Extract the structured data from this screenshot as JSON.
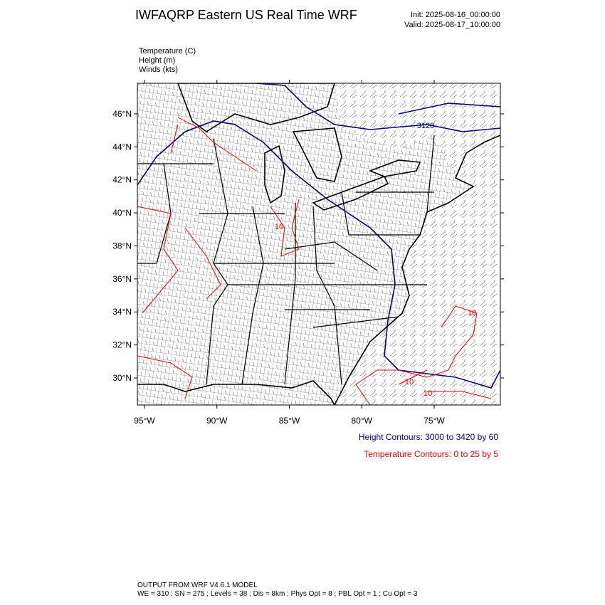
{
  "header": {
    "title": "IWFAQRP Eastern US Real Time WRF",
    "init": "Init: 2025-08-16_00:00:00",
    "valid": "Valid: 2025-08-17_10:00:00"
  },
  "fields": [
    "Temperature   (C)",
    "Height   (m)",
    "Winds   (kts)"
  ],
  "map": {
    "lat_ticks": [
      {
        "value": 46,
        "label": "46°N"
      },
      {
        "value": 44,
        "label": "44°N"
      },
      {
        "value": 42,
        "label": "42°N"
      },
      {
        "value": 40,
        "label": "40°N"
      },
      {
        "value": 38,
        "label": "38°N"
      },
      {
        "value": 36,
        "label": "36°N"
      },
      {
        "value": 34,
        "label": "34°N"
      },
      {
        "value": 32,
        "label": "32°N"
      },
      {
        "value": 30,
        "label": "30°N"
      }
    ],
    "lon_ticks": [
      {
        "value": -95,
        "label": "95°W"
      },
      {
        "value": -90,
        "label": "90°W"
      },
      {
        "value": -85,
        "label": "85°W"
      },
      {
        "value": -80,
        "label": "80°W"
      },
      {
        "value": -75,
        "label": "75°W"
      }
    ],
    "contour_labels": [
      "3120",
      "10",
      "10",
      "10",
      "10"
    ]
  },
  "contour_info": {
    "height": "Height Contours: 3000 to 3420 by 60",
    "temperature": "Temperature Contours: 0 to 25 by 5"
  },
  "footer": {
    "line1": "OUTPUT FROM WRF V4.6.1 MODEL",
    "line2": "WE = 310 ; SN = 275 ; Levels = 38 ; Dis = 8km ; Phys Opt = 8 ; PBL Opt = 1 ; Cu Opt = 3"
  }
}
